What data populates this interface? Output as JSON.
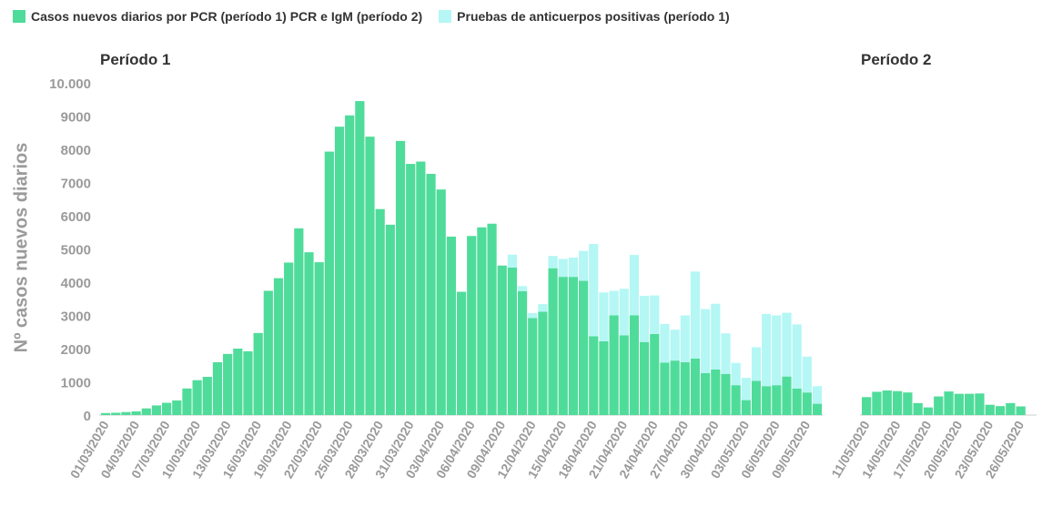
{
  "legend": {
    "pcr_label": "Casos nuevos diarios por PCR (período 1) PCR e IgM (período 2)",
    "antibody_label": "Pruebas de anticuerpos positivas (período 1)"
  },
  "periods": {
    "p1_title": "Período 1",
    "p2_title": "Período 2"
  },
  "colors": {
    "pcr": "#4fdc9a",
    "antibody": "#b4f7f5",
    "axis_text": "#9a9a9a",
    "baseline": "#cccccc"
  },
  "chart_data": {
    "type": "bar",
    "stacked": true,
    "ylabel": "Nº casos nuevos diarios",
    "ylim": [
      0,
      10000
    ],
    "yticks": [
      0,
      1000,
      2000,
      3000,
      4000,
      5000,
      6000,
      7000,
      8000,
      9000,
      10000
    ],
    "ytick_labels": [
      "0",
      "1000",
      "2000",
      "3000",
      "4000",
      "5000",
      "6000",
      "7000",
      "8000",
      "9000",
      "10.000"
    ],
    "period1": {
      "title": "Período 1",
      "dates": [
        "01/03/2020",
        "02/03/2020",
        "03/03/2020",
        "04/03/2020",
        "05/03/2020",
        "06/03/2020",
        "07/03/2020",
        "08/03/2020",
        "09/03/2020",
        "10/03/2020",
        "11/03/2020",
        "12/03/2020",
        "13/03/2020",
        "14/03/2020",
        "15/03/2020",
        "16/03/2020",
        "17/03/2020",
        "18/03/2020",
        "19/03/2020",
        "20/03/2020",
        "21/03/2020",
        "22/03/2020",
        "23/03/2020",
        "24/03/2020",
        "25/03/2020",
        "26/03/2020",
        "27/03/2020",
        "28/03/2020",
        "29/03/2020",
        "30/03/2020",
        "31/03/2020",
        "01/04/2020",
        "02/04/2020",
        "03/04/2020",
        "04/04/2020",
        "05/04/2020",
        "06/04/2020",
        "07/04/2020",
        "08/04/2020",
        "09/04/2020",
        "10/04/2020",
        "11/04/2020",
        "12/04/2020",
        "13/04/2020",
        "14/04/2020",
        "15/04/2020",
        "16/04/2020",
        "17/04/2020",
        "18/04/2020",
        "19/04/2020",
        "20/04/2020",
        "21/04/2020",
        "22/04/2020",
        "23/04/2020",
        "24/04/2020",
        "25/04/2020",
        "26/04/2020",
        "27/04/2020",
        "28/04/2020",
        "29/04/2020",
        "30/04/2020",
        "01/05/2020",
        "02/05/2020",
        "03/05/2020",
        "04/05/2020",
        "05/05/2020",
        "06/05/2020",
        "07/05/2020",
        "08/05/2020",
        "09/05/2020",
        "10/05/2020"
      ],
      "tick_labels": [
        "01/03/2020",
        "04/03/2020",
        "07/03/2020",
        "10/03/2020",
        "13/03/2020",
        "16/03/2020",
        "19/03/2020",
        "22/03/2020",
        "25/03/2020",
        "28/03/2020",
        "31/03/2020",
        "03/04/2020",
        "06/04/2020",
        "09/04/2020",
        "12/04/2020",
        "15/04/2020",
        "18/04/2020",
        "21/04/2020",
        "24/04/2020",
        "27/04/2020",
        "30/04/2020",
        "03/05/2020",
        "06/05/2020",
        "09/05/2020"
      ],
      "series": [
        {
          "name": "Casos nuevos diarios por PCR (período 1) PCR e IgM (período 2)",
          "values": [
            60,
            70,
            90,
            110,
            200,
            290,
            370,
            440,
            800,
            1050,
            1150,
            1590,
            1840,
            2000,
            1920,
            2470,
            3740,
            4120,
            4590,
            5620,
            4900,
            4600,
            7930,
            8680,
            9020,
            9450,
            8380,
            6200,
            5730,
            8250,
            7560,
            7630,
            7260,
            6790,
            5370,
            3710,
            5390,
            5650,
            5760,
            4500,
            4440,
            3730,
            2920,
            3110,
            4420,
            4160,
            4160,
            4040,
            2370,
            2220,
            3000,
            2400,
            3000,
            2200,
            2440,
            1580,
            1640,
            1590,
            1700,
            1260,
            1370,
            1240,
            900,
            450,
            1030,
            870,
            900,
            1160,
            800,
            680,
            340
          ]
        },
        {
          "name": "Pruebas de anticuerpos positivas (período 1)",
          "values": [
            0,
            0,
            0,
            0,
            0,
            0,
            0,
            0,
            0,
            0,
            0,
            0,
            0,
            0,
            0,
            0,
            0,
            0,
            0,
            0,
            0,
            0,
            0,
            0,
            0,
            0,
            0,
            0,
            0,
            0,
            0,
            0,
            0,
            0,
            0,
            0,
            0,
            0,
            0,
            0,
            390,
            150,
            150,
            230,
            370,
            540,
            580,
            900,
            2780,
            1470,
            740,
            1400,
            1820,
            1390,
            1160,
            1160,
            930,
            1410,
            2620,
            1930,
            1980,
            1220,
            670,
            670,
            1010,
            2170,
            2100,
            1920,
            1930,
            1080,
            530
          ]
        }
      ]
    },
    "period2": {
      "title": "Período 2",
      "dates": [
        "11/05/2020",
        "12/05/2020",
        "13/05/2020",
        "14/05/2020",
        "15/05/2020",
        "16/05/2020",
        "17/05/2020",
        "18/05/2020",
        "19/05/2020",
        "20/05/2020",
        "21/05/2020",
        "22/05/2020",
        "23/05/2020",
        "24/05/2020",
        "25/05/2020",
        "26/05/2020",
        "27/05/2020"
      ],
      "tick_labels": [
        "11/05/2020",
        "14/05/2020",
        "17/05/2020",
        "20/05/2020",
        "23/05/2020",
        "26/05/2020"
      ],
      "series": [
        {
          "name": "Casos nuevos diarios por PCR (período 1) PCR e IgM (período 2)",
          "values": [
            540,
            700,
            740,
            720,
            680,
            360,
            230,
            560,
            710,
            640,
            640,
            650,
            310,
            270,
            360,
            260,
            0
          ]
        }
      ]
    }
  }
}
